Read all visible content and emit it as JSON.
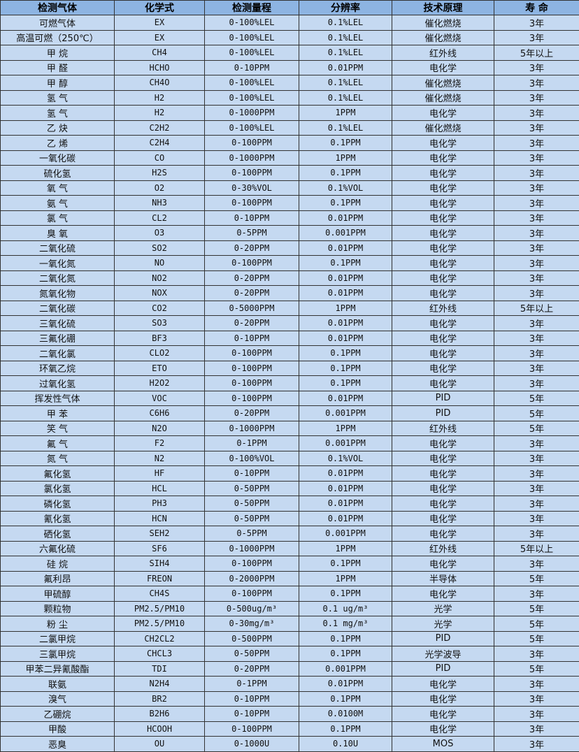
{
  "header": [
    "检测气体",
    "化学式",
    "检测量程",
    "分辨率",
    "技术原理",
    "寿  命"
  ],
  "colors": {
    "header_bg": "#8DB4E2",
    "row_bg": "#C5D9F1",
    "border": "#333333"
  },
  "rows": [
    [
      "可燃气体",
      "EX",
      "0-100%LEL",
      "0.1%LEL",
      "催化燃烧",
      "3年"
    ],
    [
      "高温可燃（250℃）",
      "EX",
      "0-100%LEL",
      "0.1%LEL",
      "催化燃烧",
      "3年"
    ],
    [
      "甲  烷",
      "CH4",
      "0-100%LEL",
      "0.1%LEL",
      "红外线",
      "5年以上"
    ],
    [
      "甲  醛",
      "HCHO",
      "0-10PPM",
      "0.01PPM",
      "电化学",
      "3年"
    ],
    [
      "甲  醇",
      "CH4O",
      "0-100%LEL",
      "0.1%LEL",
      "催化燃烧",
      "3年"
    ],
    [
      "氢  气",
      "H2",
      "0-100%LEL",
      "0.1%LEL",
      "催化燃烧",
      "3年"
    ],
    [
      "氢  气",
      "H2",
      "0-1000PPM",
      "1PPM",
      "电化学",
      "3年"
    ],
    [
      "乙  炔",
      "C2H2",
      "0-100%LEL",
      "0.1%LEL",
      "催化燃烧",
      "3年"
    ],
    [
      "乙  烯",
      "C2H4",
      "0-100PPM",
      "0.1PPM",
      "电化学",
      "3年"
    ],
    [
      "一氧化碳",
      "CO",
      "0-1000PPM",
      "1PPM",
      "电化学",
      "3年"
    ],
    [
      "硫化氢",
      "H2S",
      "0-100PPM",
      "0.1PPM",
      "电化学",
      "3年"
    ],
    [
      "氧  气",
      "O2",
      "0-30%VOL",
      "0.1%VOL",
      "电化学",
      "3年"
    ],
    [
      "氨  气",
      "NH3",
      "0-100PPM",
      "0.1PPM",
      "电化学",
      "3年"
    ],
    [
      "氯  气",
      "CL2",
      "0-10PPM",
      "0.01PPM",
      "电化学",
      "3年"
    ],
    [
      "臭  氧",
      "O3",
      "0-5PPM",
      "0.001PPM",
      "电化学",
      "3年"
    ],
    [
      "二氧化硫",
      "SO2",
      "0-20PPM",
      "0.01PPM",
      "电化学",
      "3年"
    ],
    [
      "一氧化氮",
      "NO",
      "0-100PPM",
      "0.1PPM",
      "电化学",
      "3年"
    ],
    [
      "二氧化氮",
      "NO2",
      "0-20PPM",
      "0.01PPM",
      "电化学",
      "3年"
    ],
    [
      "氮氧化物",
      "NOX",
      "0-20PPM",
      "0.01PPM",
      "电化学",
      "3年"
    ],
    [
      "二氧化碳",
      "CO2",
      "0-5000PPM",
      "1PPM",
      "红外线",
      "5年以上"
    ],
    [
      "三氧化硫",
      "SO3",
      "0-20PPM",
      "0.01PPM",
      "电化学",
      "3年"
    ],
    [
      "三氟化硼",
      "BF3",
      "0-10PPM",
      "0.01PPM",
      "电化学",
      "3年"
    ],
    [
      "二氧化氯",
      "CLO2",
      "0-100PPM",
      "0.1PPM",
      "电化学",
      "3年"
    ],
    [
      "环氧乙烷",
      "ETO",
      "0-100PPM",
      "0.1PPM",
      "电化学",
      "3年"
    ],
    [
      "过氧化氢",
      "H2O2",
      "0-100PPM",
      "0.1PPM",
      "电化学",
      "3年"
    ],
    [
      "挥发性气体",
      "VOC",
      "0-100PPM",
      "0.01PPM",
      "PID",
      "5年"
    ],
    [
      "甲  苯",
      "C6H6",
      "0-20PPM",
      "0.001PPM",
      "PID",
      "5年"
    ],
    [
      "笑  气",
      "N2O",
      "0-1000PPM",
      "1PPM",
      "红外线",
      "5年"
    ],
    [
      "氟  气",
      "F2",
      "0-1PPM",
      "0.001PPM",
      "电化学",
      "3年"
    ],
    [
      "氮  气",
      "N2",
      "0-100%VOL",
      "0.1%VOL",
      "电化学",
      "3年"
    ],
    [
      "氟化氢",
      "HF",
      "0-10PPM",
      "0.01PPM",
      "电化学",
      "3年"
    ],
    [
      "氯化氢",
      "HCL",
      "0-50PPM",
      "0.01PPM",
      "电化学",
      "3年"
    ],
    [
      "磷化氢",
      "PH3",
      "0-50PPM",
      "0.01PPM",
      "电化学",
      "3年"
    ],
    [
      "氰化氢",
      "HCN",
      "0-50PPM",
      "0.01PPM",
      "电化学",
      "3年"
    ],
    [
      "硒化氢",
      "SEH2",
      "0-5PPM",
      "0.001PPM",
      "电化学",
      "3年"
    ],
    [
      "六氟化硫",
      "SF6",
      "0-1000PPM",
      "1PPM",
      "红外线",
      "5年以上"
    ],
    [
      "硅  烷",
      "SIH4",
      "0-100PPM",
      "0.1PPM",
      "电化学",
      "3年"
    ],
    [
      "氟利昂",
      "FREON",
      "0-2000PPM",
      "1PPM",
      "半导体",
      "5年"
    ],
    [
      "甲硫醇",
      "CH4S",
      "0-100PPM",
      "0.1PPM",
      "电化学",
      "3年"
    ],
    [
      "颗粒物",
      "PM2.5/PM10",
      "0-500ug/m³",
      "0.1 ug/m³",
      "光学",
      "5年"
    ],
    [
      "粉  尘",
      "PM2.5/PM10",
      "0-30mg/m³",
      "0.1 mg/m³",
      "光学",
      "5年"
    ],
    [
      "二氯甲烷",
      "CH2CL2",
      "0-500PPM",
      "0.1PPM",
      "PID",
      "5年"
    ],
    [
      "三氯甲烷",
      "CHCL3",
      "0-50PPM",
      "0.1PPM",
      "光学波导",
      "3年"
    ],
    [
      "甲苯二异氰酸酯",
      "TDI",
      "0-20PPM",
      "0.001PPM",
      "PID",
      "5年"
    ],
    [
      "联氨",
      "N2H4",
      "0-1PPM",
      "0.01PPM",
      "电化学",
      "3年"
    ],
    [
      "溴气",
      "BR2",
      "0-10PPM",
      "0.1PPM",
      "电化学",
      "3年"
    ],
    [
      "乙硼烷",
      "B2H6",
      "0-10PPM",
      "0.0100M",
      "电化学",
      "3年"
    ],
    [
      "甲酸",
      "HCOOH",
      "0-100PPM",
      "0.1PPM",
      "电化学",
      "3年"
    ],
    [
      "恶臭",
      "OU",
      "0-1000U",
      "0.10U",
      "MOS",
      "3年"
    ]
  ]
}
